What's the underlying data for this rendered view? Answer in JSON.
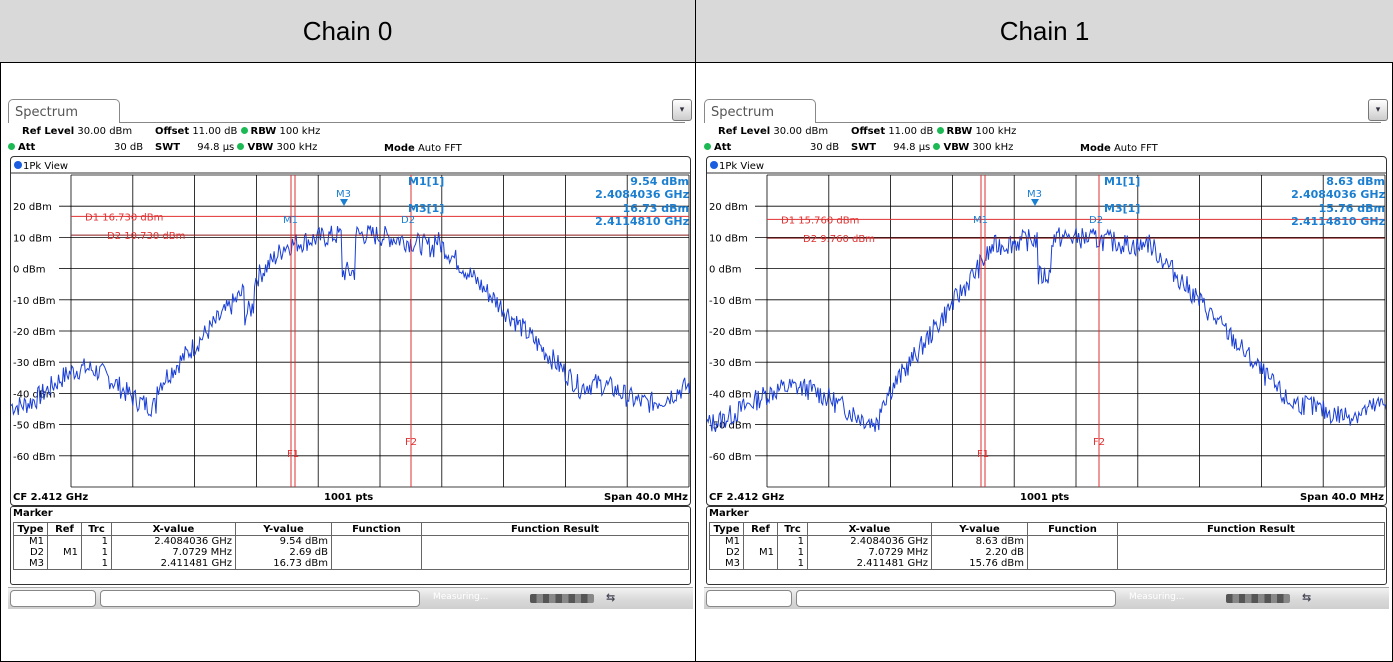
{
  "panels": [
    {
      "title": "Chain 0",
      "tab_label": "Spectrum",
      "settings": {
        "ref_level_label": "Ref Level",
        "ref_level": "30.00 dBm",
        "offset_label": "Offset",
        "offset": "11.00 dB",
        "rbw_label": "RBW",
        "rbw": "100 kHz",
        "att_label": "Att",
        "att": "30 dB",
        "swt_label": "SWT",
        "swt": "94.8 µs",
        "vbw_label": "VBW",
        "vbw": "300 kHz",
        "mode_label": "Mode",
        "mode": "Auto FFT"
      },
      "view_label": "1Pk View",
      "y_labels": [
        "20 dBm",
        "10 dBm",
        "0 dBm",
        "-10 dBm",
        "-20 dBm",
        "-30 dBm",
        "-40 dBm",
        "-50 dBm",
        "-60 dBm"
      ],
      "d1_label": "D1 16.730 dBm",
      "d2_label": "D2 10.730 dBm",
      "d1_level_dbm": 16.73,
      "d2_level_dbm": 10.73,
      "readout": {
        "m1_name": "M1[1]",
        "m1_level": "9.54 dBm",
        "m1_freq": "2.4084036 GHz",
        "m3_name": "M3[1]",
        "m3_level": "16.73 dBm",
        "m3_freq": "2.4114810 GHz"
      },
      "marker_labels": {
        "m1": "M1",
        "m3": "M3",
        "d2": "D2",
        "f1": "F1",
        "f2": "F2"
      },
      "status": {
        "cf": "CF 2.412 GHz",
        "pts": "1001 pts",
        "span": "Span 40.0 MHz"
      },
      "marker_table": {
        "title": "Marker",
        "headers": [
          "Type",
          "Ref",
          "Trc",
          "X-value",
          "Y-value",
          "Function",
          "Function Result"
        ],
        "rows": [
          [
            "M1",
            "",
            "1",
            "2.4084036 GHz",
            "9.54 dBm",
            "",
            ""
          ],
          [
            "D2",
            "M1",
            "1",
            "7.0729 MHz",
            "2.69 dB",
            "",
            ""
          ],
          [
            "M3",
            "",
            "1",
            "2.411481 GHz",
            "16.73 dBm",
            "",
            ""
          ]
        ]
      },
      "bottom_status": "Measuring...",
      "trace_seed": 7,
      "trace_shape": "chain0"
    },
    {
      "title": "Chain 1",
      "tab_label": "Spectrum",
      "settings": {
        "ref_level_label": "Ref Level",
        "ref_level": "30.00 dBm",
        "offset_label": "Offset",
        "offset": "11.00 dB",
        "rbw_label": "RBW",
        "rbw": "100 kHz",
        "att_label": "Att",
        "att": "30 dB",
        "swt_label": "SWT",
        "swt": "94.8 µs",
        "vbw_label": "VBW",
        "vbw": "300 kHz",
        "mode_label": "Mode",
        "mode": "Auto FFT"
      },
      "view_label": "1Pk View",
      "y_labels": [
        "20 dBm",
        "10 dBm",
        "0 dBm",
        "-10 dBm",
        "-20 dBm",
        "-30 dBm",
        "-40 dBm",
        "-50 dBm",
        "-60 dBm"
      ],
      "d1_label": "D1 15.760 dBm",
      "d2_label": "D2 9.760 dBm",
      "d1_level_dbm": 15.76,
      "d2_level_dbm": 9.76,
      "readout": {
        "m1_name": "M1[1]",
        "m1_level": "8.63 dBm",
        "m1_freq": "2.4084036 GHz",
        "m3_name": "M3[1]",
        "m3_level": "15.76 dBm",
        "m3_freq": "2.4114810 GHz"
      },
      "marker_labels": {
        "m1": "M1",
        "m3": "M3",
        "d2": "D2",
        "f1": "F1",
        "f2": "F2"
      },
      "status": {
        "cf": "CF 2.412 GHz",
        "pts": "1001 pts",
        "span": "Span 40.0 MHz"
      },
      "marker_table": {
        "title": "Marker",
        "headers": [
          "Type",
          "Ref",
          "Trc",
          "X-value",
          "Y-value",
          "Function",
          "Function Result"
        ],
        "rows": [
          [
            "M1",
            "",
            "1",
            "2.4084036 GHz",
            "8.63 dBm",
            "",
            ""
          ],
          [
            "D2",
            "M1",
            "1",
            "7.0729 MHz",
            "2.20 dB",
            "",
            ""
          ],
          [
            "M3",
            "",
            "1",
            "2.411481 GHz",
            "15.76 dBm",
            "",
            ""
          ]
        ]
      },
      "bottom_status": "Measuring...",
      "trace_seed": 13,
      "trace_shape": "chain1"
    }
  ],
  "colors": {
    "trace": "#1a3fd6",
    "marker_lines": "#e03030",
    "readout": "#1a7fd0",
    "grid": "#000000"
  }
}
